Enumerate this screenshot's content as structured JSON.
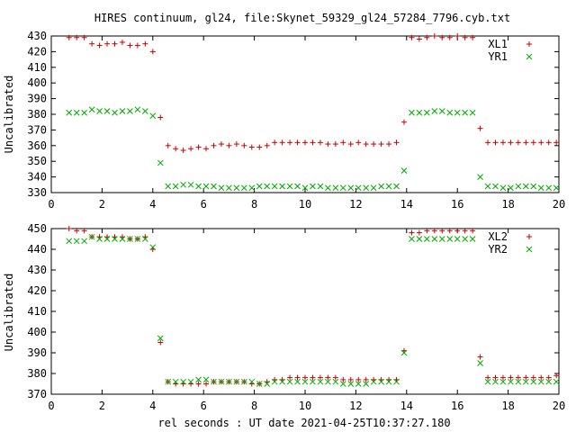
{
  "chart_data": [
    {
      "type": "scatter",
      "title": "HIRES continuum, gl24, file:Skynet_59329_gl24_57284_7796.cyb.txt",
      "xlabel": "",
      "ylabel": "Uncalibrated",
      "xlim": [
        0,
        20
      ],
      "ylim": [
        330,
        430
      ],
      "xticks": [
        0,
        2,
        4,
        6,
        8,
        10,
        12,
        14,
        16,
        18,
        20
      ],
      "yticks": [
        330,
        340,
        350,
        360,
        370,
        380,
        390,
        400,
        410,
        420,
        430
      ],
      "legend_position": "top-right",
      "series": [
        {
          "name": "XL1",
          "marker": "plus",
          "color": "#cc0000",
          "x": [
            0.7,
            1.0,
            1.3,
            1.6,
            1.9,
            2.2,
            2.5,
            2.8,
            3.1,
            3.4,
            3.7,
            4.0,
            4.3,
            4.6,
            4.9,
            5.2,
            5.5,
            5.8,
            6.1,
            6.4,
            6.7,
            7.0,
            7.3,
            7.6,
            7.9,
            8.2,
            8.5,
            8.8,
            9.1,
            9.4,
            9.7,
            10.0,
            10.3,
            10.6,
            10.9,
            11.2,
            11.5,
            11.8,
            12.1,
            12.4,
            12.7,
            13.0,
            13.3,
            13.6,
            13.9,
            14.2,
            14.5,
            14.8,
            15.1,
            15.4,
            15.7,
            16.0,
            16.3,
            16.6,
            16.9,
            17.2,
            17.5,
            17.8,
            18.1,
            18.4,
            18.7,
            19.0,
            19.3,
            19.6,
            19.9
          ],
          "y": [
            429,
            429,
            429,
            425,
            424,
            425,
            425,
            426,
            424,
            424,
            425,
            420,
            378,
            360,
            358,
            357,
            358,
            359,
            358,
            360,
            361,
            360,
            361,
            360,
            359,
            359,
            360,
            362,
            362,
            362,
            362,
            362,
            362,
            362,
            361,
            361,
            362,
            361,
            362,
            361,
            361,
            361,
            361,
            362,
            375,
            429,
            428,
            429,
            430,
            429,
            429,
            430,
            429,
            429,
            371,
            362,
            362,
            362,
            362,
            362,
            362,
            362,
            362,
            362,
            362
          ]
        },
        {
          "name": "YR1",
          "marker": "cross",
          "color": "#00aa00",
          "x": [
            0.7,
            1.0,
            1.3,
            1.6,
            1.9,
            2.2,
            2.5,
            2.8,
            3.1,
            3.4,
            3.7,
            4.0,
            4.3,
            4.6,
            4.9,
            5.2,
            5.5,
            5.8,
            6.1,
            6.4,
            6.7,
            7.0,
            7.3,
            7.6,
            7.9,
            8.2,
            8.5,
            8.8,
            9.1,
            9.4,
            9.7,
            10.0,
            10.3,
            10.6,
            10.9,
            11.2,
            11.5,
            11.8,
            12.1,
            12.4,
            12.7,
            13.0,
            13.3,
            13.6,
            13.9,
            14.2,
            14.5,
            14.8,
            15.1,
            15.4,
            15.7,
            16.0,
            16.3,
            16.6,
            16.9,
            17.2,
            17.5,
            17.8,
            18.1,
            18.4,
            18.7,
            19.0,
            19.3,
            19.6,
            19.9
          ],
          "y": [
            381,
            381,
            381,
            383,
            382,
            382,
            381,
            382,
            382,
            383,
            382,
            379,
            349,
            334,
            334,
            335,
            335,
            334,
            334,
            334,
            333,
            333,
            333,
            333,
            333,
            334,
            334,
            334,
            334,
            334,
            334,
            333,
            334,
            334,
            333,
            333,
            333,
            333,
            333,
            333,
            333,
            334,
            334,
            334,
            344,
            381,
            381,
            381,
            382,
            382,
            381,
            381,
            381,
            381,
            340,
            334,
            334,
            333,
            333,
            334,
            334,
            334,
            333,
            333,
            333
          ]
        }
      ]
    },
    {
      "type": "scatter",
      "title": "",
      "xlabel": "rel seconds : UT date 2021-04-25T10:37:27.180",
      "ylabel": "Uncalibrated",
      "xlim": [
        0,
        20
      ],
      "ylim": [
        370,
        450
      ],
      "xticks": [
        0,
        2,
        4,
        6,
        8,
        10,
        12,
        14,
        16,
        18,
        20
      ],
      "yticks": [
        370,
        380,
        390,
        400,
        410,
        420,
        430,
        440,
        450
      ],
      "legend_position": "top-right",
      "series": [
        {
          "name": "XL2",
          "marker": "plus",
          "color": "#cc0000",
          "x": [
            0.7,
            1.0,
            1.3,
            1.6,
            1.9,
            2.2,
            2.5,
            2.8,
            3.1,
            3.4,
            3.7,
            4.0,
            4.3,
            4.6,
            4.9,
            5.2,
            5.5,
            5.8,
            6.1,
            6.4,
            6.7,
            7.0,
            7.3,
            7.6,
            7.9,
            8.2,
            8.5,
            8.8,
            9.1,
            9.4,
            9.7,
            10.0,
            10.3,
            10.6,
            10.9,
            11.2,
            11.5,
            11.8,
            12.1,
            12.4,
            12.7,
            13.0,
            13.3,
            13.6,
            13.9,
            14.2,
            14.5,
            14.8,
            15.1,
            15.4,
            15.7,
            16.0,
            16.3,
            16.6,
            16.9,
            17.2,
            17.5,
            17.8,
            18.1,
            18.4,
            18.7,
            19.0,
            19.3,
            19.6,
            19.9
          ],
          "y": [
            450,
            449,
            449,
            446,
            446,
            446,
            446,
            446,
            445,
            445,
            446,
            440,
            395,
            376,
            375,
            375,
            375,
            375,
            375,
            376,
            376,
            376,
            376,
            376,
            375,
            375,
            376,
            377,
            377,
            378,
            378,
            378,
            378,
            378,
            378,
            378,
            377,
            377,
            377,
            377,
            377,
            377,
            377,
            377,
            391,
            448,
            448,
            449,
            449,
            449,
            449,
            449,
            449,
            449,
            388,
            378,
            378,
            378,
            378,
            378,
            378,
            378,
            378,
            378,
            379
          ]
        },
        {
          "name": "YR2",
          "marker": "cross",
          "color": "#00aa00",
          "x": [
            0.7,
            1.0,
            1.3,
            1.6,
            1.9,
            2.2,
            2.5,
            2.8,
            3.1,
            3.4,
            3.7,
            4.0,
            4.3,
            4.6,
            4.9,
            5.2,
            5.5,
            5.8,
            6.1,
            6.4,
            6.7,
            7.0,
            7.3,
            7.6,
            7.9,
            8.2,
            8.5,
            8.8,
            9.1,
            9.4,
            9.7,
            10.0,
            10.3,
            10.6,
            10.9,
            11.2,
            11.5,
            11.8,
            12.1,
            12.4,
            12.7,
            13.0,
            13.3,
            13.6,
            13.9,
            14.2,
            14.5,
            14.8,
            15.1,
            15.4,
            15.7,
            16.0,
            16.3,
            16.6,
            16.9,
            17.2,
            17.5,
            17.8,
            18.1,
            18.4,
            18.7,
            19.0,
            19.3,
            19.6,
            19.9
          ],
          "y": [
            444,
            444,
            444,
            446,
            445,
            445,
            445,
            445,
            445,
            445,
            445,
            441,
            397,
            376,
            376,
            376,
            376,
            377,
            377,
            376,
            376,
            376,
            376,
            376,
            376,
            375,
            375,
            376,
            376,
            376,
            376,
            376,
            376,
            376,
            376,
            376,
            375,
            375,
            375,
            375,
            376,
            376,
            376,
            376,
            390,
            445,
            445,
            445,
            445,
            445,
            445,
            445,
            445,
            445,
            385,
            376,
            376,
            376,
            376,
            376,
            376,
            376,
            376,
            376,
            376
          ]
        }
      ]
    }
  ]
}
